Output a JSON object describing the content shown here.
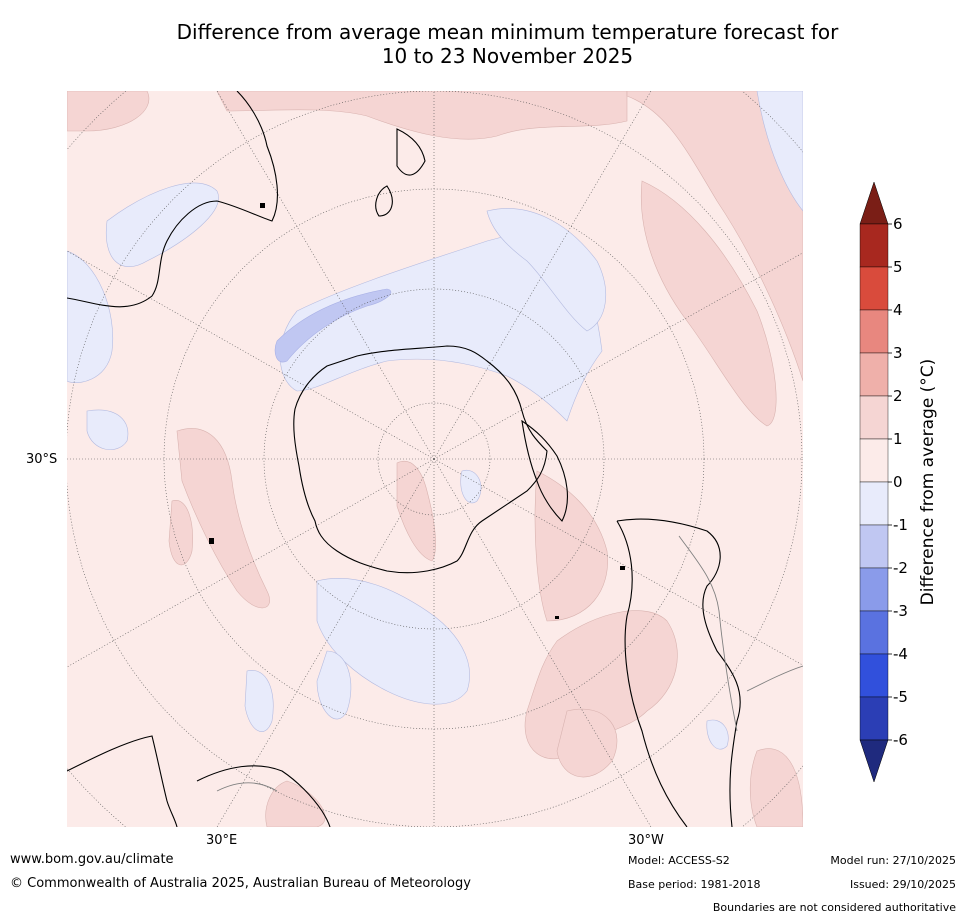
{
  "title": {
    "line1": "Difference from average mean minimum temperature forecast for",
    "line2": "10 to 23 November 2025"
  },
  "axis_labels": {
    "lat_30s": "30°S",
    "lon_30e": "30°E",
    "lon_30w": "30°W"
  },
  "colorbar": {
    "title": "Difference from average (°C)",
    "ticks": [
      "6",
      "5",
      "4",
      "3",
      "2",
      "1",
      "0",
      "-1",
      "-2",
      "-3",
      "-4",
      "-5",
      "-6"
    ],
    "colors": {
      "over": "#7a1e16",
      "c5_6": "#a8281f",
      "c4_5": "#d94b3c",
      "c3_4": "#e8877f",
      "c2_3": "#efb0aa",
      "c1_2": "#f5d5d3",
      "c0_1": "#fcebe9",
      "cm1_0": "#e8ebfb",
      "cm2_m1": "#c0c7f2",
      "cm3_m2": "#8a9bea",
      "cm4_m3": "#5a72e0",
      "cm5_m4": "#3150dc",
      "cm6_m5": "#2b3eb5",
      "under": "#1f2a7e"
    }
  },
  "map_colors": {
    "warm_light": "#fcebe9",
    "warm_mid": "#f5d5d3",
    "cool_light": "#e8ebfb",
    "cool_mid": "#c0c7f2",
    "coast": "#000000",
    "border": "#808080"
  },
  "footer": {
    "website": "www.bom.gov.au/climate",
    "copyright": "© Commonwealth of Australia 2025, Australian Bureau of Meteorology",
    "model": "Model: ACCESS-S2",
    "base_period": "Base period: 1981-2018",
    "model_run": "Model run: 27/10/2025",
    "issued": "Issued: 29/10/2025",
    "disclaimer": "Boundaries are not considered authoritative"
  }
}
